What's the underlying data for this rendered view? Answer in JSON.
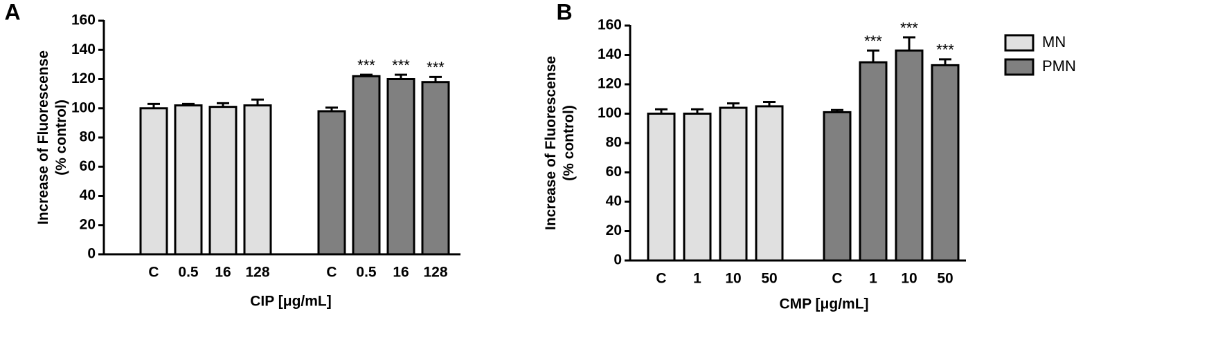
{
  "chart_data": [
    {
      "type": "bar",
      "panel": "A",
      "xlabel": "CIP [μg/mL]",
      "ylabel": [
        "Increase of Fluorescense",
        "(% control)"
      ],
      "categories": [
        "C",
        "0.5",
        "16",
        "128",
        "C",
        "0.5",
        "16",
        "128"
      ],
      "series": [
        {
          "color": "#e0e0e0",
          "values": [
            100,
            102,
            101,
            102,
            null,
            null,
            null,
            null
          ],
          "errors": [
            3,
            1,
            2.5,
            4,
            null,
            null,
            null,
            null
          ],
          "annotations": [
            null,
            null,
            null,
            null,
            null,
            null,
            null,
            null
          ]
        },
        {
          "color": "#808080",
          "values": [
            null,
            null,
            null,
            null,
            98,
            122,
            120,
            118
          ],
          "errors": [
            null,
            null,
            null,
            null,
            2.5,
            1,
            3,
            3.5
          ],
          "annotations": [
            null,
            null,
            null,
            null,
            null,
            "***",
            "***",
            "***"
          ]
        }
      ],
      "ylim": [
        0,
        160
      ],
      "yticks": [
        0,
        20,
        40,
        60,
        80,
        100,
        120,
        140,
        160
      ],
      "legend": false
    },
    {
      "type": "bar",
      "panel": "B",
      "xlabel": "CMP [μg/mL]",
      "ylabel": [
        "Increase of Fluorescense",
        "(% control)"
      ],
      "categories": [
        "C",
        "1",
        "10",
        "50",
        "C",
        "1",
        "10",
        "50"
      ],
      "series": [
        {
          "name": "MN",
          "color": "#e0e0e0",
          "values": [
            100,
            100,
            104,
            105,
            null,
            null,
            null,
            null
          ],
          "errors": [
            3,
            3,
            3,
            3,
            null,
            null,
            null,
            null
          ],
          "annotations": [
            null,
            null,
            null,
            null,
            null,
            null,
            null,
            null
          ]
        },
        {
          "name": "PMN",
          "color": "#808080",
          "values": [
            null,
            null,
            null,
            null,
            101,
            135,
            143,
            133
          ],
          "errors": [
            null,
            null,
            null,
            null,
            1.5,
            8,
            9,
            4
          ],
          "annotations": [
            null,
            null,
            null,
            null,
            null,
            "***",
            "***",
            "***"
          ]
        }
      ],
      "ylim": [
        0,
        160
      ],
      "yticks": [
        0,
        20,
        40,
        60,
        80,
        100,
        120,
        140,
        160
      ],
      "legend": true
    }
  ]
}
